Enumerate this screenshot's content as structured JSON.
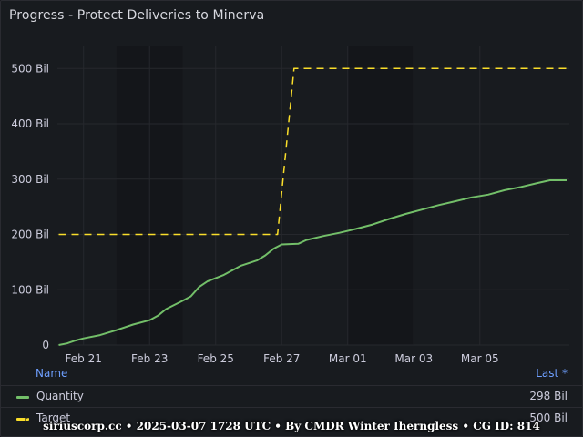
{
  "panel": {
    "title": "Progress - Protect Deliveries to Minerva"
  },
  "legend": {
    "name_header": "Name",
    "last_header": "Last *",
    "rows": [
      {
        "name": "Quantity",
        "last": "298 Bil",
        "color": "#73bf69",
        "style": "solid"
      },
      {
        "name": "Target",
        "last": "500 Bil",
        "color": "#fade2a",
        "style": "dashed"
      }
    ]
  },
  "footer": {
    "text": "siriuscorp.cc • 2025-03-07 1728 UTC • By CMDR Winter Iherngless • CG ID: 814"
  },
  "chart_data": {
    "type": "line",
    "title": "Progress - Protect Deliveries to Minerva",
    "xlabel": "",
    "ylabel": "",
    "x_range": [
      "2025-02-20T05:00",
      "2025-03-07T17:00"
    ],
    "y_range": [
      0,
      540
    ],
    "y_ticks": [
      {
        "value": 0,
        "label": "0"
      },
      {
        "value": 100,
        "label": "100 Bil"
      },
      {
        "value": 200,
        "label": "200 Bil"
      },
      {
        "value": 300,
        "label": "300 Bil"
      },
      {
        "value": 400,
        "label": "400 Bil"
      },
      {
        "value": 500,
        "label": "500 Bil"
      }
    ],
    "x_ticks": [
      {
        "date": "2025-02-21",
        "label": "Feb 21"
      },
      {
        "date": "2025-02-23",
        "label": "Feb 23"
      },
      {
        "date": "2025-02-25",
        "label": "Feb 25"
      },
      {
        "date": "2025-02-27",
        "label": "Feb 27"
      },
      {
        "date": "2025-03-01",
        "label": "Mar 01"
      },
      {
        "date": "2025-03-03",
        "label": "Mar 03"
      },
      {
        "date": "2025-03-05",
        "label": "Mar 05"
      }
    ],
    "weekend_bands": [
      [
        "2025-02-22",
        "2025-02-24"
      ],
      [
        "2025-03-01",
        "2025-03-03"
      ]
    ],
    "series": [
      {
        "name": "Quantity",
        "color": "#73bf69",
        "style": "solid",
        "points": [
          [
            "2025-02-20T06:00",
            0
          ],
          [
            "2025-02-20T12:00",
            3
          ],
          [
            "2025-02-20T18:00",
            8
          ],
          [
            "2025-02-21T00:00",
            12
          ],
          [
            "2025-02-21T12:00",
            18
          ],
          [
            "2025-02-22T00:00",
            27
          ],
          [
            "2025-02-22T12:00",
            37
          ],
          [
            "2025-02-23T00:00",
            45
          ],
          [
            "2025-02-23T06:00",
            53
          ],
          [
            "2025-02-23T12:00",
            65
          ],
          [
            "2025-02-24T00:00",
            80
          ],
          [
            "2025-02-24T06:00",
            88
          ],
          [
            "2025-02-24T12:00",
            105
          ],
          [
            "2025-02-24T18:00",
            115
          ],
          [
            "2025-02-25T06:00",
            127
          ],
          [
            "2025-02-25T18:00",
            143
          ],
          [
            "2025-02-26T06:00",
            153
          ],
          [
            "2025-02-26T12:00",
            162
          ],
          [
            "2025-02-26T18:00",
            174
          ],
          [
            "2025-02-27T00:00",
            182
          ],
          [
            "2025-02-27T12:00",
            183
          ],
          [
            "2025-02-27T18:00",
            190
          ],
          [
            "2025-02-28T06:00",
            197
          ],
          [
            "2025-02-28T18:00",
            203
          ],
          [
            "2025-03-01T06:00",
            210
          ],
          [
            "2025-03-01T18:00",
            218
          ],
          [
            "2025-03-02T06:00",
            228
          ],
          [
            "2025-03-02T18:00",
            237
          ],
          [
            "2025-03-03T06:00",
            245
          ],
          [
            "2025-03-03T18:00",
            253
          ],
          [
            "2025-03-04T06:00",
            260
          ],
          [
            "2025-03-04T18:00",
            267
          ],
          [
            "2025-03-05T06:00",
            272
          ],
          [
            "2025-03-05T18:00",
            280
          ],
          [
            "2025-03-06T06:00",
            286
          ],
          [
            "2025-03-06T18:00",
            293
          ],
          [
            "2025-03-07T03:00",
            298
          ],
          [
            "2025-03-07T15:00",
            298
          ]
        ]
      },
      {
        "name": "Target",
        "color": "#fade2a",
        "style": "dashed",
        "points": [
          [
            "2025-02-20T06:00",
            200
          ],
          [
            "2025-02-26T21:00",
            200
          ],
          [
            "2025-02-27T09:00",
            500
          ],
          [
            "2025-03-07T15:00",
            500
          ]
        ]
      }
    ]
  }
}
